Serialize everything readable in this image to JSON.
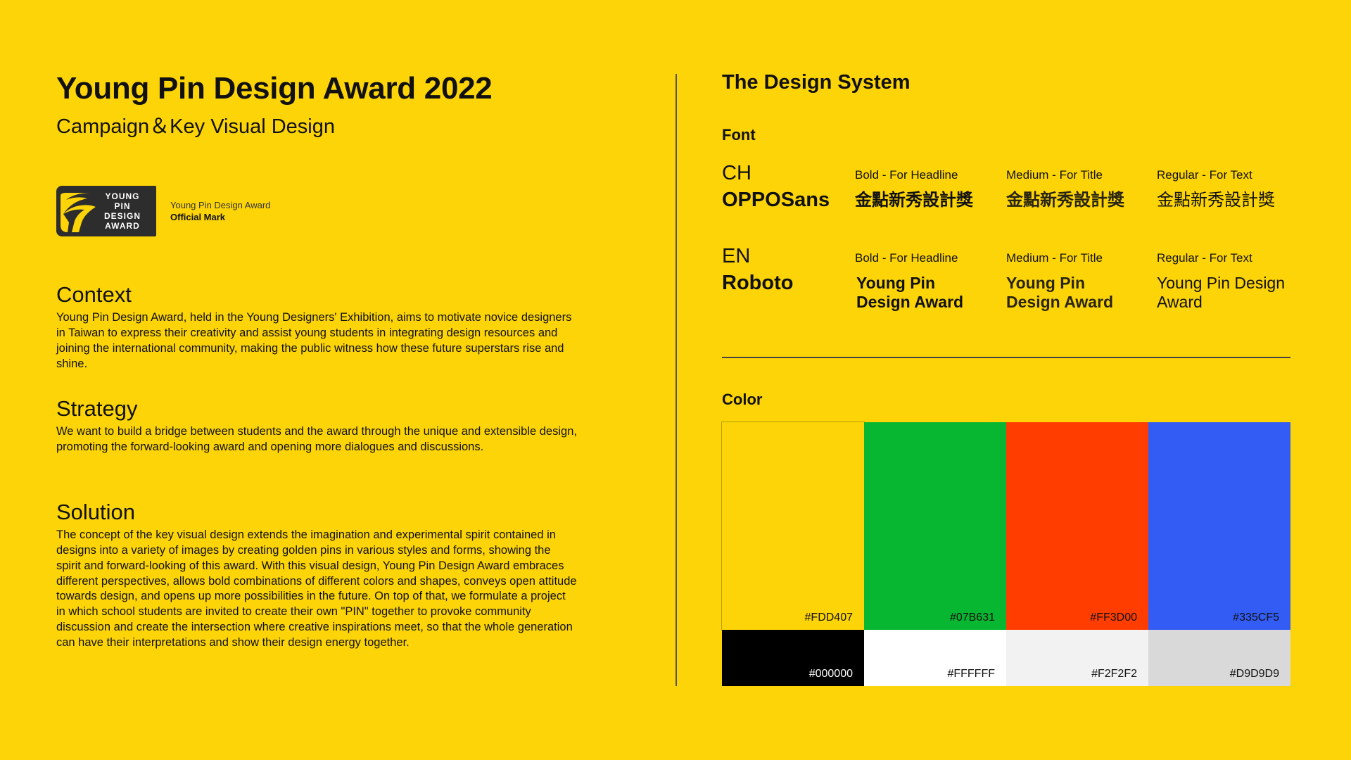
{
  "header": {
    "title": "Young Pin Design Award 2022",
    "subtitle": "Campaign＆Key Visual Design"
  },
  "official_mark": {
    "logo_lines": [
      "YOUNG",
      "PIN",
      "DESIGN",
      "AWARD"
    ],
    "caption_name": "Young Pin Design Award",
    "caption_label": "Official Mark"
  },
  "sections": {
    "context": {
      "heading": "Context",
      "body": "Young Pin Design Award, held in the Young Designers' Exhibition, aims to motivate novice designers in Taiwan to express their creativity and assist young students in integrating design resources and joining the international community, making the public witness how these future superstars rise and shine."
    },
    "strategy": {
      "heading": "Strategy",
      "body": "We want to build a bridge between students and the award through the unique and extensible design, promoting the forward-looking award and opening more dialogues and discussions."
    },
    "solution": {
      "heading": "Solution",
      "body": "The concept of the key visual design extends the imagination and experimental spirit contained in designs into a variety of images by creating golden pins in various styles and forms, showing the spirit and forward-looking of this award. With this visual design, Young Pin Design Award embraces different perspectives, allows bold combinations of different colors and shapes, conveys open attitude towards design, and opens up more possibilities in the future. On top of that, we formulate a project in which school students are invited to create their own \"PIN\" together to provoke community discussion and create the intersection where creative inspirations meet, so that the whole generation can have their interpretations and show their design energy together."
    }
  },
  "design_system": {
    "title": "The Design System",
    "font_heading": "Font",
    "fonts": [
      {
        "lang": "CH",
        "family": "OPPOSans",
        "weights": [
          {
            "label": "Bold - For Headline",
            "sample": "金點新秀設計獎"
          },
          {
            "label": "Medium - For Title",
            "sample": "金點新秀設計獎"
          },
          {
            "label": "Regular - For Text",
            "sample": "金點新秀設計獎"
          }
        ]
      },
      {
        "lang": "EN",
        "family": "Roboto",
        "weights": [
          {
            "label": "Bold - For Headline",
            "sample": "Young Pin Design Award"
          },
          {
            "label": "Medium - For Title",
            "sample": "Young Pin Design Award"
          },
          {
            "label": "Regular - For Text",
            "sample": "Young Pin Design Award"
          }
        ]
      }
    ],
    "color_heading": "Color",
    "colors": [
      {
        "hex": "#FDD407",
        "text_color": "#111111"
      },
      {
        "hex": "#07B631",
        "text_color": "#111111"
      },
      {
        "hex": "#FF3D00",
        "text_color": "#111111"
      },
      {
        "hex": "#335CF5",
        "text_color": "#111111"
      },
      {
        "hex": "#000000",
        "text_color": "#FFFFFF"
      },
      {
        "hex": "#FFFFFF",
        "text_color": "#111111"
      },
      {
        "hex": "#F2F2F2",
        "text_color": "#111111"
      },
      {
        "hex": "#D9D9D9",
        "text_color": "#111111"
      }
    ]
  }
}
